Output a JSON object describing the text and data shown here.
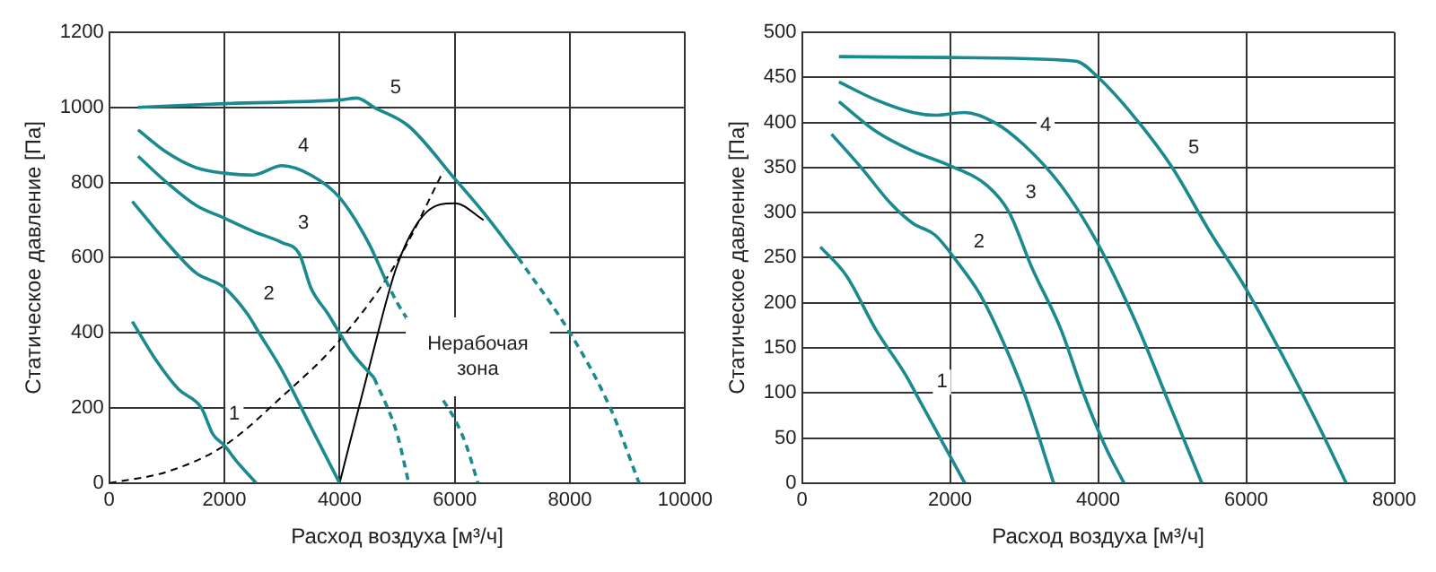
{
  "chart_data": [
    {
      "type": "line",
      "xlabel": "Расход воздуха [м³/ч]",
      "ylabel": "Статическое давление [Па]",
      "xlim": [
        0,
        10000
      ],
      "xticks": [
        0,
        2000,
        4000,
        6000,
        8000,
        10000
      ],
      "ylim": [
        0,
        1200
      ],
      "yticks": [
        0,
        200,
        400,
        600,
        800,
        1000,
        1200
      ],
      "grid": true,
      "legend": false,
      "marker": "none",
      "annotations": [
        "Нерабочая зона"
      ],
      "series": [
        {
          "name": "1",
          "color": "#1a8a8f",
          "x": [
            400,
            800,
            1200,
            1600,
            1800,
            2000,
            2200,
            2550
          ],
          "values": [
            430,
            330,
            250,
            200,
            130,
            100,
            60,
            0
          ]
        },
        {
          "name": "2",
          "color": "#1a8a8f",
          "x": [
            400,
            1000,
            1500,
            2000,
            2400,
            2600,
            3000,
            3500,
            4000
          ],
          "values": [
            750,
            640,
            560,
            520,
            450,
            400,
            300,
            150,
            0
          ]
        },
        {
          "name": "3",
          "color": "#1a8a8f",
          "x": [
            500,
            1000,
            1500,
            2000,
            2500,
            3000,
            3300,
            3500,
            3800,
            4200,
            4600
          ],
          "values": [
            870,
            800,
            740,
            705,
            670,
            640,
            610,
            520,
            450,
            350,
            280
          ]
        },
        {
          "color": "#1a8a8f",
          "line_style": "dashed",
          "x": [
            4600,
            5000,
            5200
          ],
          "values": [
            280,
            130,
            0
          ]
        },
        {
          "name": "4",
          "color": "#1a8a8f",
          "x": [
            500,
            1000,
            1500,
            2000,
            2500,
            3000,
            3500,
            4000,
            4500,
            4800
          ],
          "values": [
            940,
            880,
            840,
            825,
            820,
            845,
            820,
            760,
            640,
            540
          ]
        },
        {
          "color": "#1a8a8f",
          "line_style": "dashed",
          "x": [
            4800,
            5000,
            5200
          ],
          "values": [
            540,
            480,
            430
          ]
        },
        {
          "color": "#1a8a8f",
          "line_style": "dashed",
          "x": [
            5800,
            6000,
            6200,
            6400
          ],
          "values": [
            220,
            170,
            100,
            0
          ]
        },
        {
          "name": "5",
          "color": "#1a8a8f",
          "x": [
            500,
            2000,
            4000,
            4300,
            4600,
            5200,
            6000,
            6500,
            7100
          ],
          "values": [
            1000,
            1010,
            1020,
            1025,
            1000,
            950,
            810,
            720,
            600
          ]
        },
        {
          "color": "#1a8a8f",
          "line_style": "dashed",
          "x": [
            7100,
            8000,
            8700,
            9200
          ],
          "values": [
            600,
            400,
            200,
            0
          ]
        },
        {
          "color": "#000000",
          "line_style": "dashed",
          "x": [
            0,
            1000,
            2000,
            3000,
            4000,
            5000,
            5800
          ],
          "values": [
            0,
            30,
            100,
            230,
            380,
            590,
            830
          ]
        },
        {
          "color": "#000000",
          "x": [
            4000,
            4500,
            5000,
            5500,
            6000,
            6500
          ],
          "values": [
            0,
            300,
            580,
            720,
            745,
            700
          ]
        }
      ]
    },
    {
      "type": "line",
      "xlabel": "Расход воздуха [м³/ч]",
      "ylabel": "Статическое давление [Па]",
      "xlim": [
        0,
        8000
      ],
      "xticks": [
        0,
        2000,
        4000,
        6000,
        8000
      ],
      "ylim": [
        0,
        500
      ],
      "yticks": [
        0,
        50,
        100,
        150,
        200,
        250,
        300,
        350,
        400,
        450,
        500
      ],
      "grid": true,
      "legend": false,
      "marker": "none",
      "series": [
        {
          "name": "1",
          "color": "#1a8a8f",
          "x": [
            250,
            600,
            1000,
            1400,
            1600,
            1800,
            2000,
            2200
          ],
          "values": [
            262,
            230,
            170,
            120,
            90,
            60,
            30,
            0
          ]
        },
        {
          "name": "2",
          "color": "#1a8a8f",
          "x": [
            400,
            800,
            1200,
            1500,
            1800,
            2100,
            2400,
            2700,
            3000,
            3400
          ],
          "values": [
            387,
            350,
            310,
            288,
            275,
            245,
            210,
            160,
            100,
            0
          ]
        },
        {
          "name": "3",
          "color": "#1a8a8f",
          "x": [
            500,
            1000,
            1500,
            2000,
            2500,
            2800,
            3100,
            3500,
            3800,
            4100,
            4350
          ],
          "values": [
            423,
            390,
            368,
            352,
            330,
            300,
            240,
            170,
            100,
            40,
            0
          ]
        },
        {
          "name": "4",
          "color": "#1a8a8f",
          "x": [
            500,
            1000,
            1500,
            1800,
            2200,
            2600,
            3000,
            3500,
            4000,
            4500,
            5000,
            5400
          ],
          "values": [
            445,
            425,
            411,
            408,
            411,
            400,
            375,
            330,
            265,
            180,
            80,
            0
          ]
        },
        {
          "name": "5",
          "color": "#1a8a8f",
          "x": [
            500,
            2000,
            3700,
            4000,
            4500,
            5000,
            5500,
            6000,
            6500,
            7000,
            7350
          ],
          "values": [
            473,
            472,
            468,
            450,
            405,
            350,
            280,
            215,
            140,
            60,
            0
          ]
        }
      ]
    }
  ]
}
